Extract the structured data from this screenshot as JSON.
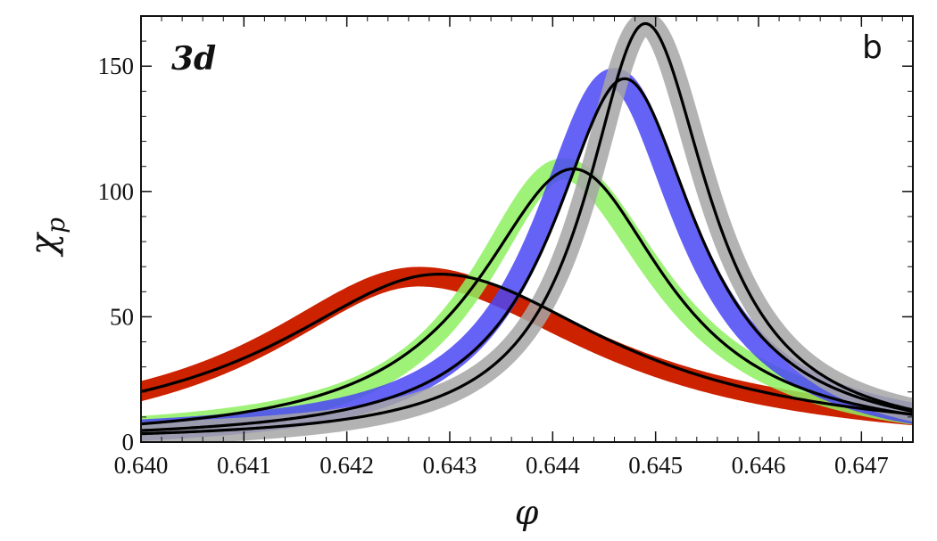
{
  "chart_data": {
    "type": "line",
    "title": "",
    "xlabel": "φ",
    "ylabel_main": "χ",
    "ylabel_sub": "p",
    "xlim": [
      0.64,
      0.6475
    ],
    "ylim": [
      0,
      170
    ],
    "xticks": [
      "0.640",
      "0.641",
      "0.642",
      "0.643",
      "0.644",
      "0.645",
      "0.646",
      "0.647"
    ],
    "yticks": [
      "0",
      "50",
      "100",
      "150"
    ],
    "annotations": {
      "dimension": "3d",
      "panel": "b"
    },
    "grid": false,
    "legend": "none",
    "series": [
      {
        "peak_x": 0.6427,
        "peak_y": 66,
        "width_left": 0.0018,
        "width_right": 0.0021,
        "band_color": "#cc2200",
        "band_opacity": 1.0,
        "band_width": 22,
        "fit_x": 0.6429,
        "fit_y": 67,
        "fit_wl": 0.0019,
        "fit_wr": 0.00205,
        "points": [
          [
            0.64,
            17
          ],
          [
            0.641,
            30
          ],
          [
            0.642,
            55
          ],
          [
            0.6427,
            66
          ],
          [
            0.643,
            64
          ],
          [
            0.644,
            52
          ],
          [
            0.645,
            34
          ],
          [
            0.646,
            20
          ],
          [
            0.647,
            9
          ]
        ]
      },
      {
        "peak_x": 0.6441,
        "peak_y": 109,
        "width_left": 0.001,
        "width_right": 0.00115,
        "band_color": "#8ef060",
        "band_opacity": 0.85,
        "band_width": 24,
        "fit_x": 0.6442,
        "fit_y": 109,
        "fit_wl": 0.00112,
        "fit_wr": 0.0011,
        "points": [
          [
            0.64,
            3
          ],
          [
            0.642,
            28
          ],
          [
            0.643,
            63
          ],
          [
            0.6441,
            109
          ],
          [
            0.645,
            90
          ],
          [
            0.646,
            45
          ],
          [
            0.6475,
            10
          ]
        ]
      },
      {
        "peak_x": 0.6446,
        "peak_y": 145,
        "width_left": 0.00085,
        "width_right": 0.00085,
        "band_color": "#4a46f4",
        "band_opacity": 0.85,
        "band_width": 24,
        "fit_x": 0.6447,
        "fit_y": 145,
        "fit_wl": 0.00085,
        "fit_wr": 0.00085,
        "points": [
          [
            0.64,
            1
          ],
          [
            0.642,
            15
          ],
          [
            0.643,
            43
          ],
          [
            0.6446,
            145
          ],
          [
            0.646,
            60
          ],
          [
            0.6475,
            12
          ]
        ]
      },
      {
        "peak_x": 0.6449,
        "peak_y": 167,
        "width_left": 0.0007,
        "width_right": 0.00075,
        "band_color": "#a6a6a6",
        "band_opacity": 0.85,
        "band_width": 26,
        "fit_x": 0.6449,
        "fit_y": 167,
        "fit_wl": 0.0007,
        "fit_wr": 0.00075,
        "points": [
          [
            0.64,
            0
          ],
          [
            0.642,
            7
          ],
          [
            0.643,
            25
          ],
          [
            0.6449,
            167
          ],
          [
            0.646,
            55
          ],
          [
            0.6475,
            10
          ]
        ]
      }
    ]
  }
}
